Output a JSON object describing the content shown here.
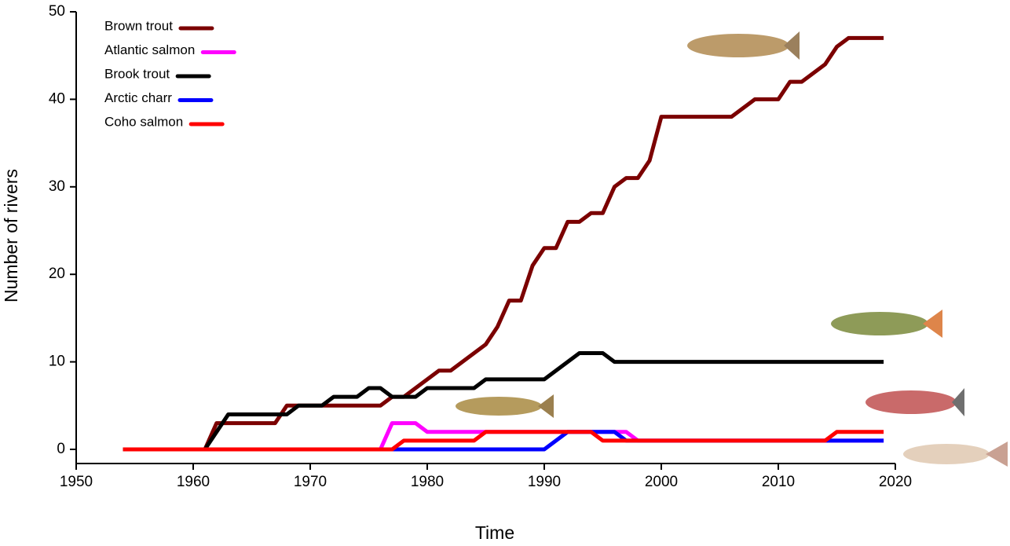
{
  "chart_data": {
    "type": "line",
    "x_label": "Time",
    "y_label": "Number of rivers",
    "x": [
      1954,
      1955,
      1956,
      1957,
      1958,
      1959,
      1960,
      1961,
      1962,
      1963,
      1964,
      1965,
      1966,
      1967,
      1968,
      1969,
      1970,
      1971,
      1972,
      1973,
      1974,
      1975,
      1976,
      1977,
      1978,
      1979,
      1980,
      1981,
      1982,
      1983,
      1984,
      1985,
      1986,
      1987,
      1988,
      1989,
      1990,
      1991,
      1992,
      1993,
      1994,
      1995,
      1996,
      1997,
      1998,
      1999,
      2000,
      2001,
      2002,
      2003,
      2004,
      2005,
      2006,
      2007,
      2008,
      2009,
      2010,
      2011,
      2012,
      2013,
      2014,
      2015,
      2016,
      2017,
      2018,
      2019
    ],
    "series": [
      {
        "name": "Brown trout",
        "color": "#7b0000",
        "values": [
          0,
          0,
          0,
          0,
          0,
          0,
          0,
          0,
          3,
          3,
          3,
          3,
          3,
          3,
          5,
          5,
          5,
          5,
          5,
          5,
          5,
          5,
          5,
          6,
          6,
          7,
          8,
          9,
          9,
          10,
          11,
          12,
          14,
          17,
          17,
          21,
          23,
          23,
          26,
          26,
          27,
          27,
          30,
          31,
          31,
          33,
          38,
          38,
          38,
          38,
          38,
          38,
          38,
          39,
          40,
          40,
          40,
          42,
          42,
          43,
          44,
          46,
          47,
          47,
          47,
          47
        ]
      },
      {
        "name": "Atlantic salmon",
        "color": "#ff00ff",
        "values": [
          0,
          0,
          0,
          0,
          0,
          0,
          0,
          0,
          0,
          0,
          0,
          0,
          0,
          0,
          0,
          0,
          0,
          0,
          0,
          0,
          0,
          0,
          0,
          3,
          3,
          3,
          2,
          2,
          2,
          2,
          2,
          2,
          2,
          2,
          2,
          2,
          2,
          2,
          2,
          2,
          2,
          2,
          2,
          2,
          1,
          1,
          1,
          1,
          1,
          1,
          1,
          1,
          1,
          1,
          1,
          1,
          1,
          1,
          1,
          1,
          1,
          1,
          1,
          1,
          1,
          1
        ]
      },
      {
        "name": "Brook trout",
        "color": "#000000",
        "values": [
          0,
          0,
          0,
          0,
          0,
          0,
          0,
          0,
          2,
          4,
          4,
          4,
          4,
          4,
          4,
          5,
          5,
          5,
          6,
          6,
          6,
          7,
          7,
          6,
          6,
          6,
          7,
          7,
          7,
          7,
          7,
          8,
          8,
          8,
          8,
          8,
          8,
          9,
          10,
          11,
          11,
          11,
          10,
          10,
          10,
          10,
          10,
          10,
          10,
          10,
          10,
          10,
          10,
          10,
          10,
          10,
          10,
          10,
          10,
          10,
          10,
          10,
          10,
          10,
          10,
          10
        ]
      },
      {
        "name": "Arctic charr",
        "color": "#0000ff",
        "values": [
          0,
          0,
          0,
          0,
          0,
          0,
          0,
          0,
          0,
          0,
          0,
          0,
          0,
          0,
          0,
          0,
          0,
          0,
          0,
          0,
          0,
          0,
          0,
          0,
          0,
          0,
          0,
          0,
          0,
          0,
          0,
          0,
          0,
          0,
          0,
          0,
          0,
          1,
          2,
          2,
          2,
          2,
          2,
          1,
          1,
          1,
          1,
          1,
          1,
          1,
          1,
          1,
          1,
          1,
          1,
          1,
          1,
          1,
          1,
          1,
          1,
          1,
          1,
          1,
          1,
          1
        ]
      },
      {
        "name": "Coho salmon",
        "color": "#ff0000",
        "values": [
          0,
          0,
          0,
          0,
          0,
          0,
          0,
          0,
          0,
          0,
          0,
          0,
          0,
          0,
          0,
          0,
          0,
          0,
          0,
          0,
          0,
          0,
          0,
          0,
          1,
          1,
          1,
          1,
          1,
          1,
          1,
          2,
          2,
          2,
          2,
          2,
          2,
          2,
          2,
          2,
          2,
          1,
          1,
          1,
          1,
          1,
          1,
          1,
          1,
          1,
          1,
          1,
          1,
          1,
          1,
          1,
          1,
          1,
          1,
          1,
          1,
          2,
          2,
          2,
          2,
          2
        ]
      }
    ],
    "xlim": [
      1950,
      2020
    ],
    "xticks": [
      1950,
      1960,
      1970,
      1980,
      1990,
      2000,
      2010,
      2020
    ],
    "ylim": [
      0,
      50
    ],
    "yticks": [
      0,
      10,
      20,
      30,
      40,
      50
    ],
    "grid": false,
    "legend": "upper left"
  }
}
